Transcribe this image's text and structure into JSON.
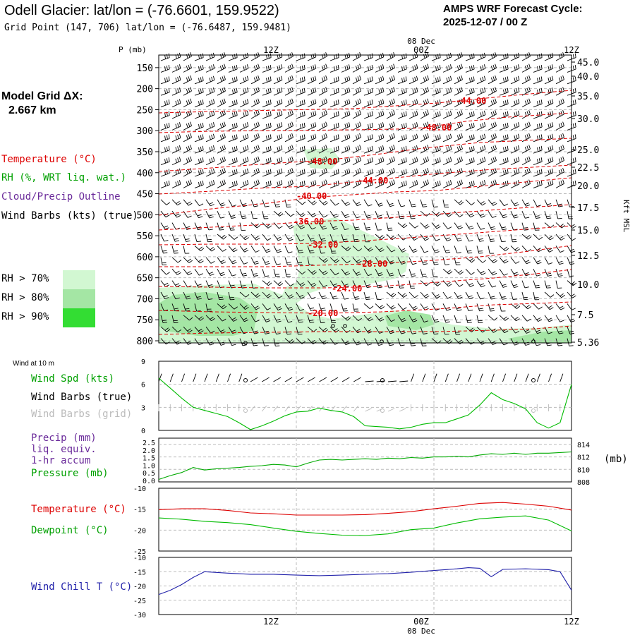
{
  "header": {
    "title": "Odell Glacier:  lat/lon = (-76.6601, 159.9522)",
    "grid_point": "Grid Point (147, 706) lat/lon = (-76.6487, 159.9481)",
    "cycle_label": "AMPS WRF Forecast Cycle:",
    "cycle_value": "2025-12-07 / 00  Z",
    "model_grid_label": "Model Grid ΔX:",
    "model_grid_value": "2.667 km"
  },
  "legend": {
    "temperature": "Temperature (°C)",
    "rh": "RH (%, WRT liq. wat.)",
    "cloud": "Cloud/Precip Outline",
    "wind_barbs": "Wind Barbs (kts) (true)",
    "rh70": "RH > 70%",
    "rh80": "RH > 80%",
    "rh90": "RH > 90%"
  },
  "colors": {
    "temperature": "#dd0000",
    "rh": "#00a000",
    "cloud": "#6a2a9a",
    "rh70": "#d2f7d2",
    "rh80": "#a4e6a4",
    "rh90": "#33dd33",
    "wind": "#00bb00",
    "pressure": "#00aa00",
    "dewpoint": "#00bb00",
    "windchill": "#2222aa"
  },
  "time_axis": {
    "top_ticks": [
      "12Z",
      "00Z",
      "12Z"
    ],
    "date_label": "08 Dec",
    "bottom_ticks": [
      "12Z",
      "00Z",
      "12Z"
    ]
  },
  "chart_data": [
    {
      "type": "line",
      "id": "cross_section",
      "title": "",
      "ylabel": "P (mb)",
      "y2label": "Kft MSL",
      "x_hours": [
        0,
        36
      ],
      "pressure_ticks": [
        150,
        200,
        250,
        300,
        350,
        400,
        450,
        500,
        550,
        600,
        650,
        700,
        750,
        800
      ],
      "height_ticks": [
        "45.0",
        "40.0",
        "35.0",
        "30.0",
        "25.0",
        "22.5",
        "20.0",
        "17.5",
        "15.0",
        "12.5",
        "10.0",
        "7.5",
        "5.36"
      ],
      "isotherm_labels": [
        "-44.00",
        "-48.00",
        "-48.00",
        "-44.00",
        "-40.00",
        "-36.00",
        "-32.00",
        "-28.00",
        "-24.00",
        "-20.00"
      ]
    },
    {
      "type": "line",
      "id": "wind10m",
      "panel_title": "Wind at 10 m",
      "labels": [
        "Wind Spd (kts)",
        "Wind Barbs (true)",
        "Wind Barbs (grid)"
      ],
      "ylim": [
        0,
        9
      ],
      "y_ticks": [
        "9",
        "6",
        "3",
        "0"
      ],
      "x": [
        0,
        1,
        2,
        3,
        4,
        5,
        6,
        7,
        8,
        9,
        10,
        11,
        12,
        13,
        14,
        15,
        16,
        17,
        18,
        19,
        20,
        21,
        22,
        23,
        24,
        25,
        26,
        27,
        28,
        29,
        30,
        31,
        32,
        33,
        34,
        35,
        36
      ],
      "series": [
        {
          "name": "Wind Spd (kts)",
          "values": [
            6.8,
            5.5,
            4.2,
            3.0,
            2.6,
            2.2,
            1.8,
            1.0,
            0.1,
            0.6,
            1.2,
            1.9,
            2.4,
            2.5,
            2.9,
            2.6,
            2.4,
            1.8,
            0.6,
            0.5,
            0.4,
            0.2,
            0.4,
            0.8,
            1.0,
            1.0,
            1.5,
            2.0,
            3.3,
            4.9,
            4.0,
            3.5,
            2.8,
            1.0,
            0.3,
            1.0,
            6.0
          ]
        }
      ]
    },
    {
      "type": "line",
      "id": "precip_pressure",
      "labels": [
        "Precip (mm)",
        "liq. equiv.",
        "1-hr accum",
        "Pressure (mb)"
      ],
      "y_left_ticks": [
        "2.5",
        "2.0",
        "1.5",
        "1.0",
        "0.5",
        "0.0"
      ],
      "y_right_ticks": [
        "814",
        "812",
        "810",
        "808"
      ],
      "y_right_unit": "(mb)",
      "ylim_right": [
        808,
        815
      ],
      "x": [
        0,
        1,
        2,
        3,
        4,
        5,
        6,
        7,
        8,
        9,
        10,
        11,
        12,
        13,
        14,
        15,
        16,
        17,
        18,
        19,
        20,
        21,
        22,
        23,
        24,
        25,
        26,
        27,
        28,
        29,
        30,
        31,
        32,
        33,
        34,
        35,
        36
      ],
      "series": [
        {
          "name": "Pressure (mb)",
          "values": [
            808.4,
            809.0,
            809.5,
            810.3,
            809.9,
            810.1,
            810.2,
            810.3,
            810.5,
            810.6,
            810.8,
            810.7,
            810.4,
            811.0,
            811.5,
            811.6,
            811.5,
            811.6,
            811.7,
            811.6,
            811.8,
            811.7,
            811.9,
            811.8,
            812.0,
            812.0,
            812.1,
            812.0,
            812.3,
            812.5,
            812.4,
            812.6,
            812.4,
            812.6,
            812.6,
            812.7,
            812.8
          ]
        }
      ]
    },
    {
      "type": "line",
      "id": "temp_dew",
      "labels": [
        "Temperature (°C)",
        "Dewpoint (°C)"
      ],
      "ylim": [
        -25,
        -10
      ],
      "y_ticks": [
        "-10",
        "-15",
        "-20",
        "-25"
      ],
      "x": [
        0,
        2,
        4,
        6,
        8,
        10,
        12,
        14,
        16,
        18,
        20,
        22,
        24,
        26,
        28,
        30,
        32,
        34,
        36
      ],
      "series": [
        {
          "name": "Temperature (°C)",
          "values": [
            -15.1,
            -14.9,
            -14.9,
            -15.3,
            -15.9,
            -16.1,
            -16.4,
            -16.4,
            -16.4,
            -16.3,
            -16.0,
            -15.6,
            -14.9,
            -14.3,
            -13.6,
            -13.4,
            -13.8,
            -14.3,
            -15.2
          ]
        },
        {
          "name": "Dewpoint (°C)",
          "values": [
            -17.1,
            -17.4,
            -17.9,
            -18.2,
            -18.7,
            -19.5,
            -20.3,
            -20.8,
            -21.2,
            -21.3,
            -20.9,
            -19.9,
            -19.5,
            -18.3,
            -17.3,
            -16.9,
            -16.6,
            -17.6,
            -20.2
          ]
        }
      ]
    },
    {
      "type": "line",
      "id": "windchill",
      "labels": [
        "Wind Chill T (°C)"
      ],
      "ylim": [
        -30,
        -10
      ],
      "y_ticks": [
        "-10",
        "-15",
        "-20",
        "-25",
        "-30"
      ],
      "x": [
        0,
        1,
        2,
        3,
        4,
        6,
        8,
        10,
        12,
        14,
        16,
        18,
        20,
        22,
        24,
        26,
        27,
        28,
        29,
        30,
        32,
        34,
        35,
        36
      ],
      "series": [
        {
          "name": "Wind Chill T (°C)",
          "values": [
            -23.0,
            -21.5,
            -19.5,
            -17.0,
            -15.0,
            -15.5,
            -15.9,
            -15.9,
            -16.2,
            -16.4,
            -16.2,
            -15.9,
            -15.7,
            -15.2,
            -14.6,
            -14.0,
            -13.6,
            -13.8,
            -16.8,
            -14.2,
            -14.0,
            -14.3,
            -15.0,
            -21.5
          ]
        }
      ]
    }
  ]
}
